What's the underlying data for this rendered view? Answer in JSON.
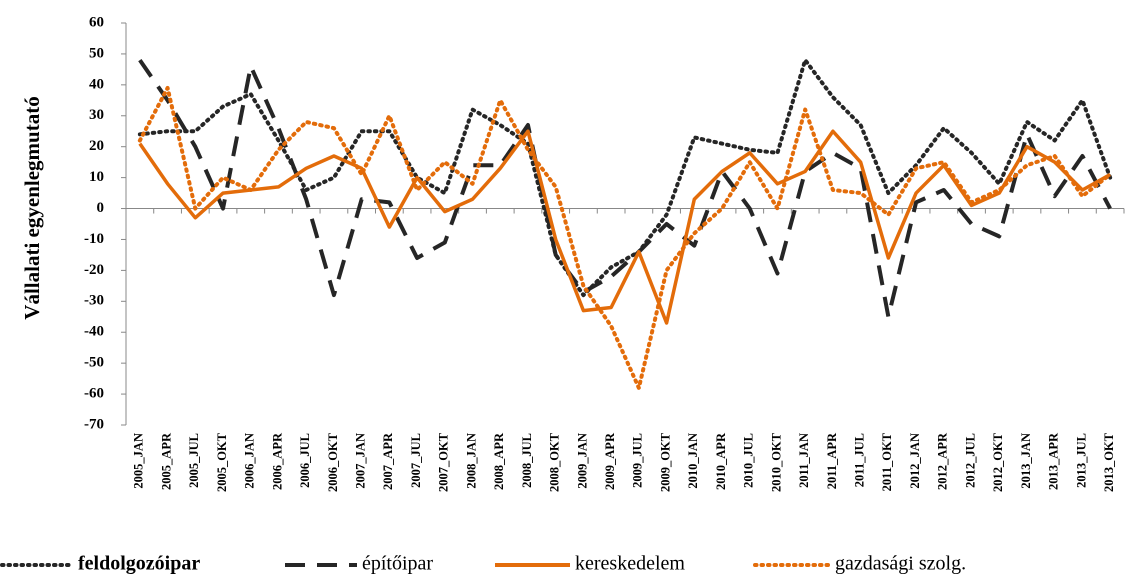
{
  "chart_data": {
    "type": "line",
    "y_label": "Vállalati egyenlegmutató",
    "categories": [
      "2005_JAN",
      "2005_APR",
      "2005_JUL",
      "2005_OKT",
      "2006_JAN",
      "2006_APR",
      "2006_JUL",
      "2006_OKT",
      "2007_JAN",
      "2007_APR",
      "2007_JUL",
      "2007_OKT",
      "2008_JAN",
      "2008_APR",
      "2008_JUL",
      "2008_OKT",
      "2009_JAN",
      "2009_APR",
      "2009_JUL",
      "2009_OKT",
      "2010_JAN",
      "2010_APR",
      "2010_JUL",
      "2010_OKT",
      "2011_JAN",
      "2011_APR",
      "2011_JUL",
      "2011_OKT",
      "2012_JAN",
      "2012_APR",
      "2012_JUL",
      "2012_OKT",
      "2013_JAN",
      "2013_APR",
      "2013_JUL",
      "2013_OKT"
    ],
    "series": [
      {
        "name": "feldolgozóipar",
        "color": "#262626",
        "style": "dotted",
        "bold": true,
        "values": [
          24,
          25,
          25,
          33,
          37,
          22,
          6,
          10,
          25,
          25,
          10,
          5,
          32,
          27,
          21,
          -15,
          -28,
          -19,
          -14,
          -2,
          23,
          21,
          19,
          18,
          48,
          36,
          27,
          5,
          14,
          26,
          18,
          8,
          28,
          22,
          35,
          10
        ]
      },
      {
        "name": "építőipar",
        "color": "#262626",
        "style": "dashed",
        "values": [
          48,
          35,
          20,
          0,
          46,
          26,
          3,
          -28,
          3,
          2,
          -16,
          -11,
          14,
          14,
          27,
          -15,
          -27,
          -22,
          -14,
          -5,
          -12,
          12,
          0,
          -21,
          12,
          18,
          13,
          -35,
          2,
          6,
          -5,
          -9,
          24,
          4,
          17,
          0
        ]
      },
      {
        "name": "kereskedelem",
        "color": "#e36c0a",
        "style": "solid",
        "values": [
          21,
          8,
          -3,
          5,
          6,
          7,
          13,
          17,
          13,
          -6,
          10,
          -1,
          3,
          13,
          25,
          -10,
          -33,
          -32,
          -14,
          -37,
          3,
          12,
          18,
          8,
          12,
          25,
          15,
          -16,
          5,
          14,
          1,
          5,
          20,
          15,
          6,
          11
        ]
      },
      {
        "name": "gazdasági szolg.",
        "color": "#e36c0a",
        "style": "dotted",
        "values": [
          22,
          39,
          0,
          10,
          6,
          19,
          28,
          26,
          11,
          30,
          6,
          15,
          8,
          35,
          19,
          7,
          -25,
          -38,
          -58,
          -20,
          -8,
          0,
          15,
          0,
          32,
          6,
          5,
          -2,
          13,
          15,
          2,
          6,
          14,
          17,
          4,
          11
        ]
      }
    ],
    "ylim": [
      -70,
      60
    ],
    "yticks": [
      -70,
      -60,
      -50,
      -40,
      -30,
      -20,
      -10,
      0,
      10,
      20,
      30,
      40,
      50,
      60
    ],
    "legend": "bottom"
  }
}
